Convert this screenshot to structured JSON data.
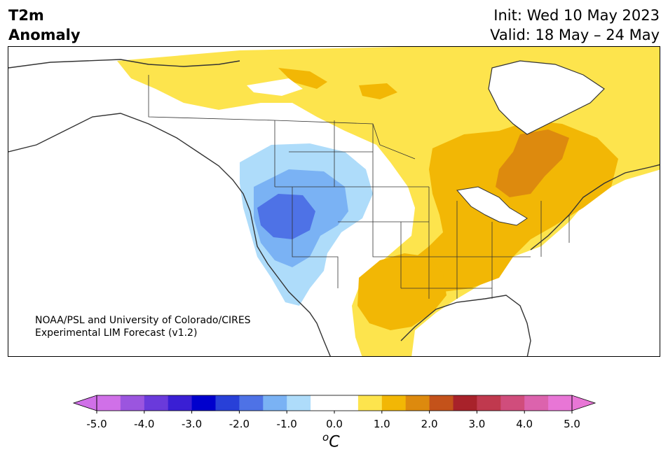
{
  "title": {
    "line1": "T2m",
    "line2": "Anomaly"
  },
  "dates": {
    "init": "Init: Wed 10 May 2023",
    "valid": "Valid: 18 May – 24 May"
  },
  "credit": {
    "line1": "NOAA/PSL and University of Colorado/CIRES",
    "line2": "Experimental LIM Forecast (v1.2)"
  },
  "colorbar": {
    "unit_sup": "o",
    "unit": "C",
    "ticks": [
      "-5.0",
      "-4.0",
      "-3.0",
      "-2.0",
      "-1.0",
      "0.0",
      "1.0",
      "2.0",
      "3.0",
      "4.0",
      "5.0"
    ],
    "colors": [
      "#d070e8",
      "#9b55df",
      "#6a3adb",
      "#3a1fd4",
      "#0000cd",
      "#2840d8",
      "#4e72e6",
      "#7ab2f4",
      "#aedcfa",
      "#ffffff",
      "#ffffff",
      "#fde44d",
      "#f2b705",
      "#dd8a0e",
      "#c4521a",
      "#a8222a",
      "#c0394e",
      "#d04d7c",
      "#dc63ad",
      "#e876d6"
    ],
    "under_color": "#d070e8",
    "over_color": "#e876d6"
  }
}
